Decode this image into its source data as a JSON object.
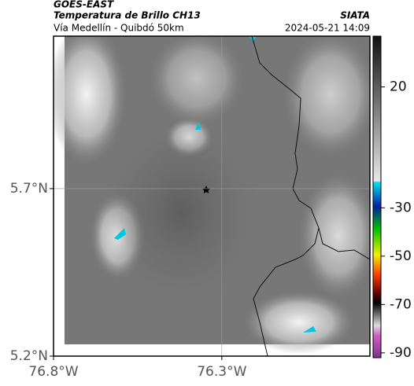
{
  "header": {
    "satellite": "GOES-EAST",
    "product": "Temperatura de Brillo CH13",
    "route": "Vía Medellín - Quibdó 50km",
    "source": "SIATA",
    "datetime": "2024-05-21 14:09"
  },
  "map": {
    "xlim": [
      -76.8,
      -75.86
    ],
    "ylim": [
      5.2,
      6.155
    ],
    "xticks": [
      {
        "value": -76.8,
        "label": "76.8°W"
      },
      {
        "value": -76.3,
        "label": "76.3°W"
      }
    ],
    "yticks": [
      {
        "value": 5.2,
        "label": "5.2°N"
      },
      {
        "value": 5.7,
        "label": "5.7°N"
      }
    ],
    "grid": true
  },
  "colorbar": {
    "lim": [
      -92,
      41
    ],
    "ticks": [
      20,
      -30,
      -50,
      -70,
      -90
    ]
  }
}
